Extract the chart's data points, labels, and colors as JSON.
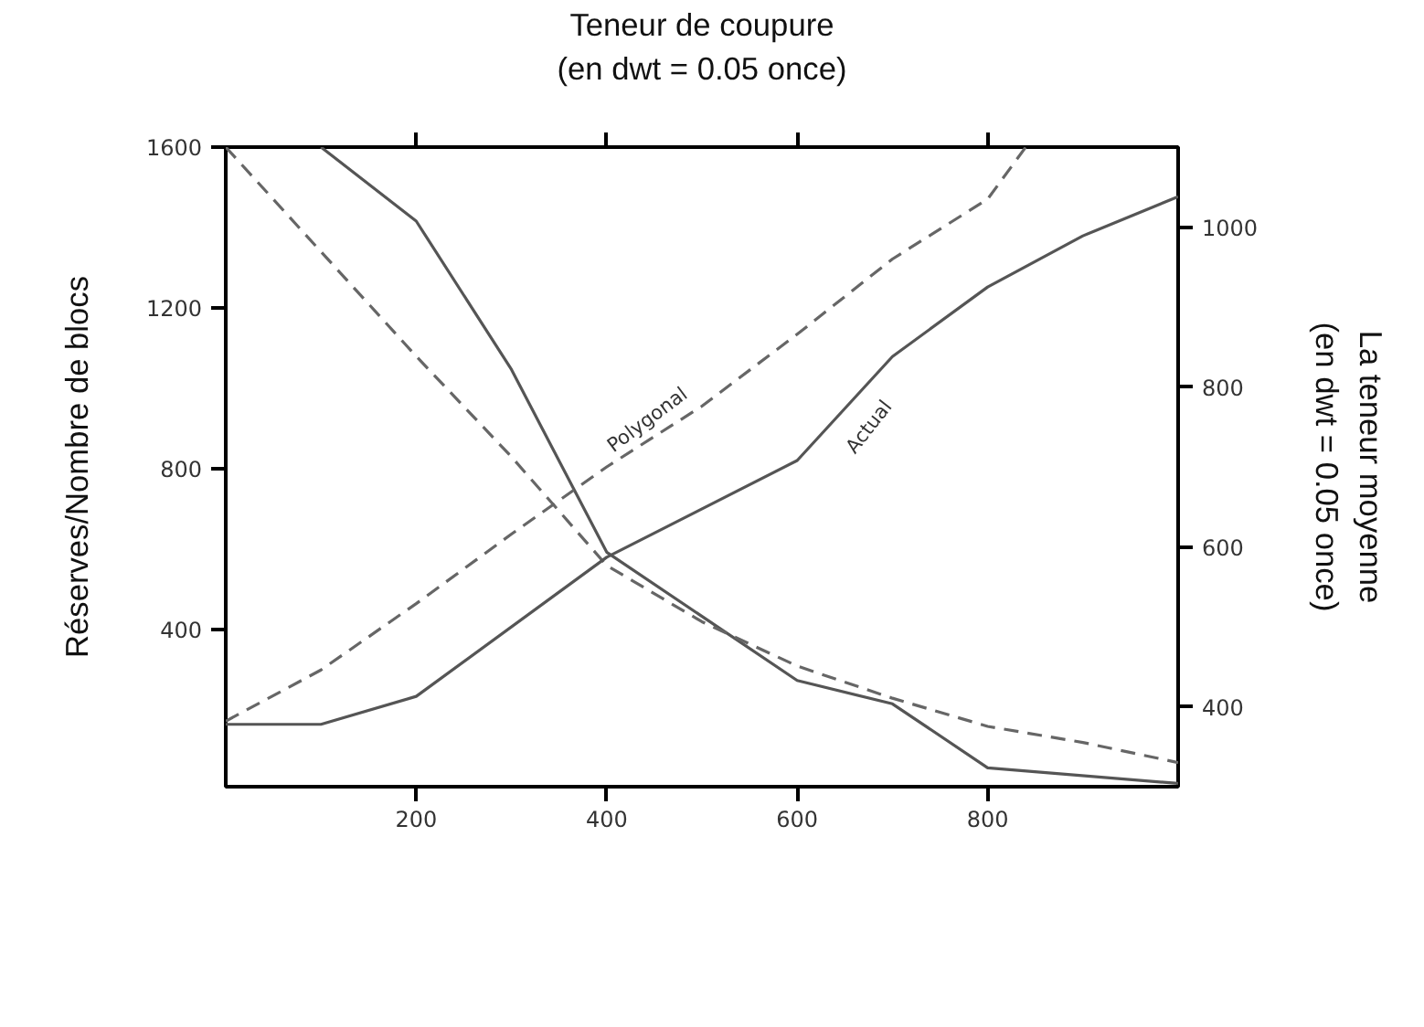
{
  "chart_data": {
    "type": "line",
    "xlabel": "Teneur de coupure\n(en dwt = 0.05 once)",
    "ylabel": "Réserves/Nombre de blocs",
    "y2label": "La teneur moyenne\n(en dwt = 0.05 once)",
    "xlim": [
      0,
      1000
    ],
    "xticks": [
      200,
      400,
      600,
      800
    ],
    "ylim": [
      10,
      1600
    ],
    "yticks": [
      400,
      800,
      1200,
      1600
    ],
    "y2lim": [
      300,
      1100
    ],
    "y2ticks": [
      400,
      600,
      800,
      1000
    ],
    "grid": false,
    "series": [
      {
        "color": "#555555",
        "line_style": "solid",
        "x": [
          100,
          200,
          300,
          400,
          600,
          700,
          800,
          1000
        ],
        "values": [
          1600,
          1416,
          1047,
          593,
          274,
          216,
          57,
          18
        ]
      },
      {
        "color": "#666666",
        "line_style": "dashed",
        "x": [
          0,
          100,
          200,
          300,
          400,
          500,
          600,
          700,
          800,
          900,
          1000
        ],
        "values": [
          1600,
          1340,
          1080,
          830,
          560,
          420,
          310,
          230,
          160,
          120,
          70
        ]
      },
      {
        "name": "Actual",
        "color": "#555555",
        "line_style": "solid",
        "axis": "y2",
        "x": [
          0,
          100,
          200,
          400,
          600,
          700,
          800,
          900,
          1000
        ],
        "values": [
          378,
          378,
          413,
          587,
          708,
          838,
          925,
          989,
          1038
        ]
      },
      {
        "name": "Polygonal",
        "color": "#666666",
        "line_style": "dashed",
        "axis": "y2",
        "x": [
          0,
          100,
          200,
          300,
          400,
          500,
          600,
          700,
          800,
          840
        ],
        "values": [
          382,
          446,
          529,
          616,
          700,
          776,
          866,
          960,
          1035,
          1100
        ]
      }
    ]
  }
}
